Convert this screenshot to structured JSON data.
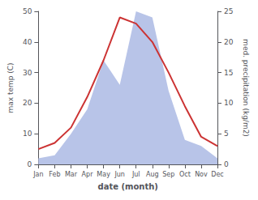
{
  "chart_data": {
    "type": "line",
    "xlabel": "date (month)",
    "ylabel": "max temp (C)",
    "y2label": "med. precipitation (kg/m2)",
    "categories": [
      "Jan",
      "Feb",
      "Mar",
      "Apr",
      "May",
      "Jun",
      "Jul",
      "Aug",
      "Sep",
      "Oct",
      "Nov",
      "Dec"
    ],
    "series": [
      {
        "type": "area",
        "axis": "y2",
        "color": "#b8c4e8",
        "values": [
          1,
          1.5,
          5,
          9,
          17,
          13,
          25,
          24,
          12,
          4,
          3,
          1
        ]
      },
      {
        "type": "line",
        "color": "#cc3333",
        "values": [
          5,
          7,
          12,
          22,
          34,
          48,
          46,
          40,
          30,
          19,
          9,
          6
        ]
      }
    ],
    "ylim": [
      0,
      50
    ],
    "yticks": [
      0,
      10,
      20,
      30,
      40,
      50
    ],
    "y2lim": [
      0,
      25
    ],
    "y2ticks": [
      0,
      5,
      10,
      15,
      20,
      25
    ],
    "grid": false
  }
}
